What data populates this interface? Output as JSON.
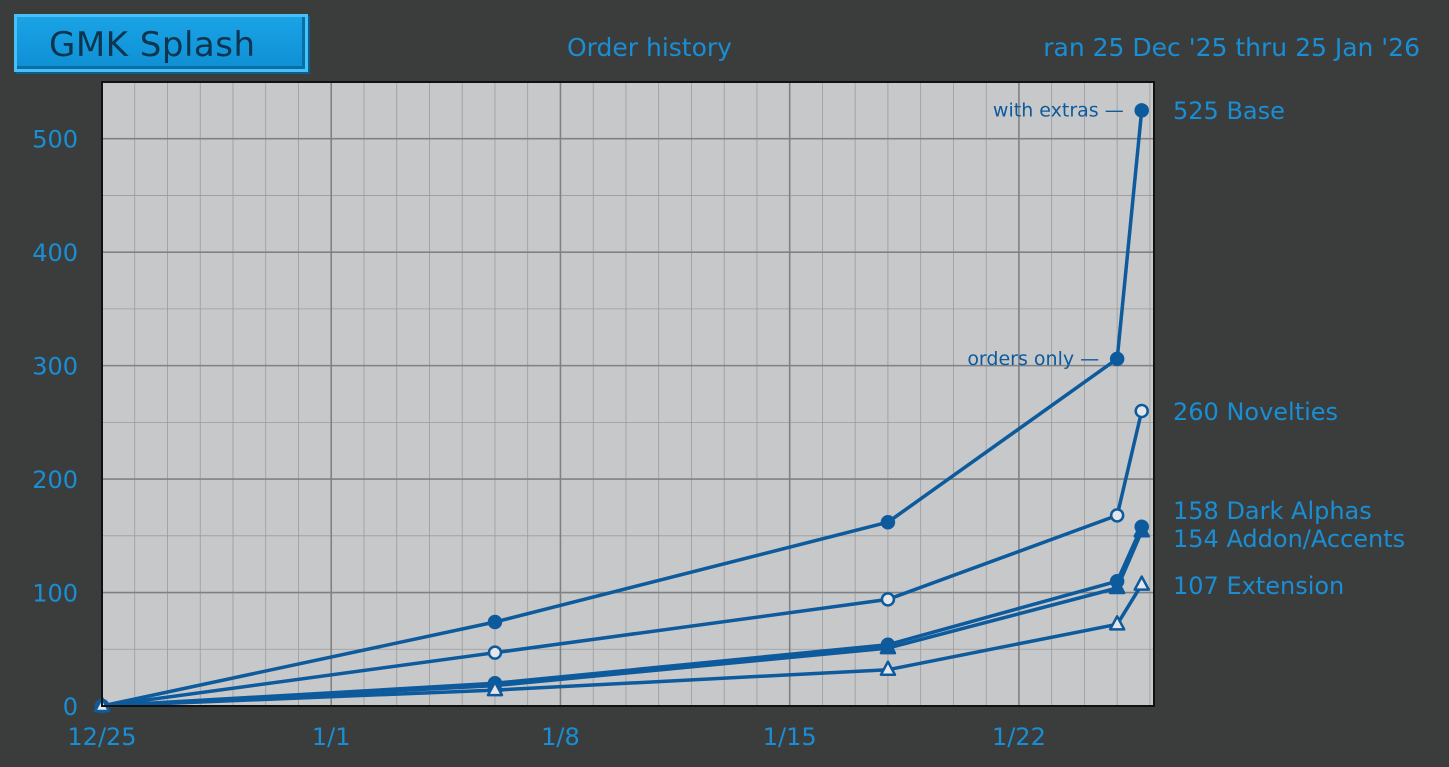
{
  "badge": {
    "label": "GMK Splash"
  },
  "header": {
    "title": "Order history",
    "range": "ran 25 Dec '25 thru 25 Jan '26"
  },
  "colors": {
    "line": "#0d5a9c",
    "text": "#1a8ed4",
    "plot_bg": "#c7c8ca",
    "grid": "#9a9b9d",
    "page_bg": "#3b3d3c"
  },
  "chart_data": {
    "type": "line",
    "title": "Order history",
    "xlabel": "",
    "ylabel": "",
    "ylim": [
      0,
      550
    ],
    "xlim": [
      "2025-12-25",
      "2026-01-26T03:00"
    ],
    "x_ticks": [
      {
        "date": "2025-12-25",
        "label": "12/25"
      },
      {
        "date": "2026-01-01",
        "label": "1/1"
      },
      {
        "date": "2026-01-08",
        "label": "1/8"
      },
      {
        "date": "2026-01-15",
        "label": "1/15"
      },
      {
        "date": "2026-01-22",
        "label": "1/22"
      }
    ],
    "y_ticks": [
      0,
      100,
      200,
      300,
      400,
      500
    ],
    "grid": true,
    "series": [
      {
        "name": "Base",
        "marker": "filled-circle",
        "points": [
          [
            "2025-12-25",
            0
          ],
          [
            "2026-01-06",
            74
          ],
          [
            "2026-01-18",
            162
          ],
          [
            "2026-01-25",
            306
          ],
          [
            "2026-01-25T18:00",
            525
          ]
        ],
        "end_label": "525 Base"
      },
      {
        "name": "Novelties",
        "marker": "open-circle",
        "points": [
          [
            "2025-12-25",
            0
          ],
          [
            "2026-01-06",
            47
          ],
          [
            "2026-01-18",
            94
          ],
          [
            "2026-01-25",
            168
          ],
          [
            "2026-01-25T18:00",
            260
          ]
        ],
        "end_label": "260 Novelties"
      },
      {
        "name": "Dark Alphas",
        "marker": "filled-circle",
        "points": [
          [
            "2025-12-25",
            0
          ],
          [
            "2026-01-06",
            20
          ],
          [
            "2026-01-18",
            54
          ],
          [
            "2026-01-25",
            110
          ],
          [
            "2026-01-25T18:00",
            158
          ]
        ],
        "end_label": "158 Dark Alphas"
      },
      {
        "name": "Addon/Accents",
        "marker": "filled-triangle",
        "points": [
          [
            "2025-12-25",
            0
          ],
          [
            "2026-01-06",
            18
          ],
          [
            "2026-01-18",
            51
          ],
          [
            "2026-01-25",
            104
          ],
          [
            "2026-01-25T18:00",
            154
          ]
        ],
        "end_label": "154 Addon/Accents"
      },
      {
        "name": "Extension",
        "marker": "open-triangle",
        "points": [
          [
            "2025-12-25",
            0
          ],
          [
            "2026-01-06",
            14
          ],
          [
            "2026-01-18",
            32
          ],
          [
            "2026-01-25",
            72
          ],
          [
            "2026-01-25T18:00",
            107
          ]
        ],
        "end_label": "107 Extension"
      }
    ],
    "annotations": [
      {
        "text": "with extras —",
        "series": "Base",
        "date": "2026-01-25T18:00",
        "value": 525
      },
      {
        "text": "orders only —",
        "series": "Base",
        "date": "2026-01-25",
        "value": 306
      }
    ]
  }
}
